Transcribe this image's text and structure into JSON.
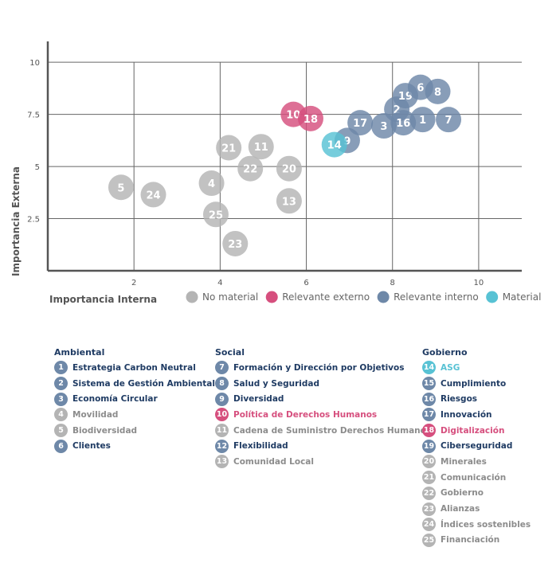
{
  "colors": {
    "no_material": "#b4b4b4",
    "relevante_externo": "#d64f7e",
    "relevante_interno": "#6e88a8",
    "material": "#58c2d4",
    "text_blue": "#1f3b63",
    "text_grey": "#8c8c8c"
  },
  "chart_data": {
    "type": "scatter",
    "xlabel": "Importancia Interna",
    "ylabel": "Importancia Externa",
    "xlim": [
      0,
      11
    ],
    "ylim": [
      0,
      11
    ],
    "xticks": [
      "2",
      "4",
      "6",
      "8",
      "10"
    ],
    "yticks": [
      "2.5",
      "5",
      "7.5",
      "10"
    ],
    "grid": true,
    "legend_position": "bottom",
    "legend": [
      {
        "key": "no_material",
        "label": "No material"
      },
      {
        "key": "relevante_externo",
        "label": "Relevante externo"
      },
      {
        "key": "relevante_interno",
        "label": "Relevante interno"
      },
      {
        "key": "material",
        "label": "Material"
      }
    ],
    "points": [
      {
        "label": "5",
        "x": 1.7,
        "y": 4.0,
        "group": "no_material"
      },
      {
        "label": "24",
        "x": 2.45,
        "y": 3.65,
        "group": "no_material"
      },
      {
        "label": "4",
        "x": 3.8,
        "y": 4.2,
        "group": "no_material"
      },
      {
        "label": "21",
        "x": 4.2,
        "y": 5.9,
        "group": "no_material"
      },
      {
        "label": "11",
        "x": 4.95,
        "y": 5.95,
        "group": "no_material"
      },
      {
        "label": "22",
        "x": 4.7,
        "y": 4.9,
        "group": "no_material"
      },
      {
        "label": "20",
        "x": 5.6,
        "y": 4.9,
        "group": "no_material"
      },
      {
        "label": "13",
        "x": 5.6,
        "y": 3.35,
        "group": "no_material"
      },
      {
        "label": "25",
        "x": 3.9,
        "y": 2.7,
        "group": "no_material"
      },
      {
        "label": "23",
        "x": 4.35,
        "y": 1.3,
        "group": "no_material"
      },
      {
        "label": "10",
        "x": 5.7,
        "y": 7.5,
        "group": "relevante_externo"
      },
      {
        "label": "18",
        "x": 6.1,
        "y": 7.3,
        "group": "relevante_externo"
      },
      {
        "label": "9",
        "x": 6.95,
        "y": 6.25,
        "group": "relevante_interno"
      },
      {
        "label": "14",
        "x": 6.65,
        "y": 6.05,
        "group": "material"
      },
      {
        "label": "17",
        "x": 7.25,
        "y": 7.1,
        "group": "relevante_interno"
      },
      {
        "label": "3",
        "x": 7.8,
        "y": 6.95,
        "group": "relevante_interno"
      },
      {
        "label": "2",
        "x": 8.1,
        "y": 7.75,
        "group": "relevante_interno"
      },
      {
        "label": "16",
        "x": 8.25,
        "y": 7.1,
        "group": "relevante_interno"
      },
      {
        "label": "19",
        "x": 8.3,
        "y": 8.4,
        "group": "relevante_interno"
      },
      {
        "label": "6",
        "x": 8.65,
        "y": 8.8,
        "group": "relevante_interno"
      },
      {
        "label": "1",
        "x": 8.7,
        "y": 7.25,
        "group": "relevante_interno"
      },
      {
        "label": "8",
        "x": 9.05,
        "y": 8.6,
        "group": "relevante_interno"
      },
      {
        "label": "7",
        "x": 9.3,
        "y": 7.25,
        "group": "relevante_interno"
      }
    ]
  },
  "categories": [
    {
      "title": "Ambiental",
      "items": [
        {
          "num": "1",
          "label": "Estrategia Carbon Neutral",
          "group": "relevante_interno"
        },
        {
          "num": "2",
          "label": "Sistema de Gestión Ambiental",
          "group": "relevante_interno"
        },
        {
          "num": "3",
          "label": "Economía Circular",
          "group": "relevante_interno"
        },
        {
          "num": "4",
          "label": "Movilidad",
          "group": "no_material"
        },
        {
          "num": "5",
          "label": "Biodiversidad",
          "group": "no_material"
        },
        {
          "num": "6",
          "label": "Clientes",
          "group": "relevante_interno"
        }
      ]
    },
    {
      "title": "Social",
      "items": [
        {
          "num": "7",
          "label": "Formación y Dirección por Objetivos",
          "group": "relevante_interno"
        },
        {
          "num": "8",
          "label": "Salud y Seguridad",
          "group": "relevante_interno"
        },
        {
          "num": "9",
          "label": "Diversidad",
          "group": "relevante_interno"
        },
        {
          "num": "10",
          "label": "Política de Derechos Humanos",
          "group": "relevante_externo"
        },
        {
          "num": "11",
          "label": "Cadena de Suministro Derechos Humanos",
          "group": "no_material"
        },
        {
          "num": "12",
          "label": "Flexibilidad",
          "group": "relevante_interno"
        },
        {
          "num": "13",
          "label": "Comunidad Local",
          "group": "no_material"
        }
      ]
    },
    {
      "title": "Gobierno",
      "items": [
        {
          "num": "14",
          "label": "ASG",
          "group": "material"
        },
        {
          "num": "15",
          "label": "Cumplimiento",
          "group": "relevante_interno"
        },
        {
          "num": "16",
          "label": "Riesgos",
          "group": "relevante_interno"
        },
        {
          "num": "17",
          "label": "Innovación",
          "group": "relevante_interno"
        },
        {
          "num": "18",
          "label": "Digitalización",
          "group": "relevante_externo"
        },
        {
          "num": "19",
          "label": "Ciberseguridad",
          "group": "relevante_interno"
        },
        {
          "num": "20",
          "label": "Minerales",
          "group": "no_material"
        },
        {
          "num": "21",
          "label": "Comunicación",
          "group": "no_material"
        },
        {
          "num": "22",
          "label": "Gobierno",
          "group": "no_material"
        },
        {
          "num": "23",
          "label": "Alianzas",
          "group": "no_material"
        },
        {
          "num": "24",
          "label": "Índices sostenibles",
          "group": "no_material"
        },
        {
          "num": "25",
          "label": "Financiación",
          "group": "no_material"
        }
      ]
    }
  ]
}
